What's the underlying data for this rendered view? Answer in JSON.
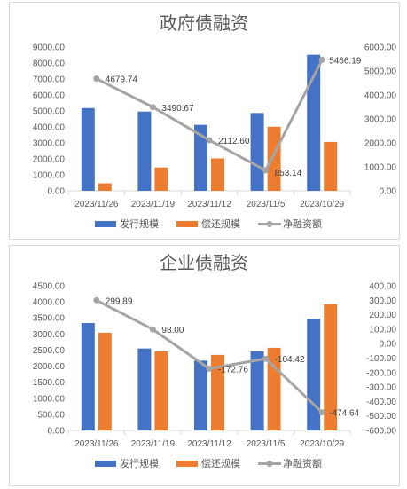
{
  "chart_data": [
    {
      "type": "bar",
      "title": "政府债融资",
      "categories": [
        "2023/11/26",
        "2023/11/19",
        "2023/11/12",
        "2023/11/5",
        "2023/10/29"
      ],
      "series": [
        {
          "name": "发行规模",
          "kind": "bar",
          "axis": "left",
          "color": "#4472C4",
          "values": [
            5180,
            4960,
            4130,
            4870,
            8520
          ]
        },
        {
          "name": "偿还规模",
          "kind": "bar",
          "axis": "left",
          "color": "#ED7D31",
          "values": [
            470,
            1460,
            2030,
            4010,
            3060
          ]
        },
        {
          "name": "净融资额",
          "kind": "line",
          "axis": "right",
          "color": "#A5A5A5",
          "values": [
            4679.74,
            3490.67,
            2112.6,
            853.14,
            5466.19
          ]
        }
      ],
      "data_labels": [
        "4679.74",
        "3490.67",
        "2112.60",
        "853.14",
        "5466.19"
      ],
      "left_axis": {
        "min": 0,
        "max": 9000,
        "step": 1000,
        "ticks": [
          "0.00",
          "1000.00",
          "2000.00",
          "3000.00",
          "4000.00",
          "5000.00",
          "6000.00",
          "7000.00",
          "8000.00",
          "9000.00"
        ]
      },
      "right_axis": {
        "min": 0,
        "max": 6000,
        "step": 1000,
        "ticks": [
          "0.00",
          "1000.00",
          "2000.00",
          "3000.00",
          "4000.00",
          "5000.00",
          "6000.00"
        ]
      },
      "legend_position": "bottom",
      "grid": false
    },
    {
      "type": "bar",
      "title": "企业债融资",
      "categories": [
        "2023/11/26",
        "2023/11/19",
        "2023/11/12",
        "2023/11/5",
        "2023/10/29"
      ],
      "series": [
        {
          "name": "发行规模",
          "kind": "bar",
          "axis": "left",
          "color": "#4472C4",
          "values": [
            3340,
            2550,
            2170,
            2460,
            3470
          ]
        },
        {
          "name": "偿还规模",
          "kind": "bar",
          "axis": "left",
          "color": "#ED7D31",
          "values": [
            3040,
            2460,
            2350,
            2570,
            3930
          ]
        },
        {
          "name": "净融资额",
          "kind": "line",
          "axis": "right",
          "color": "#A5A5A5",
          "values": [
            299.89,
            98.0,
            -172.76,
            -104.42,
            -474.64
          ]
        }
      ],
      "data_labels": [
        "299.89",
        "98.00",
        "-172.76",
        "-104.42",
        "-474.64"
      ],
      "left_axis": {
        "min": 0,
        "max": 4500,
        "step": 500,
        "ticks": [
          "0.00",
          "500.00",
          "1000.00",
          "1500.00",
          "2000.00",
          "2500.00",
          "3000.00",
          "3500.00",
          "4000.00",
          "4500.00"
        ]
      },
      "right_axis": {
        "min": -600,
        "max": 400,
        "step": 100,
        "ticks": [
          "-600.00",
          "-500.00",
          "-400.00",
          "-300.00",
          "-200.00",
          "-100.00",
          "0.00",
          "100.00",
          "200.00",
          "300.00",
          "400.00"
        ]
      },
      "legend_position": "bottom",
      "grid": false
    }
  ],
  "colors": {
    "axis_line": "#D9D9D9",
    "text": "#595959"
  }
}
